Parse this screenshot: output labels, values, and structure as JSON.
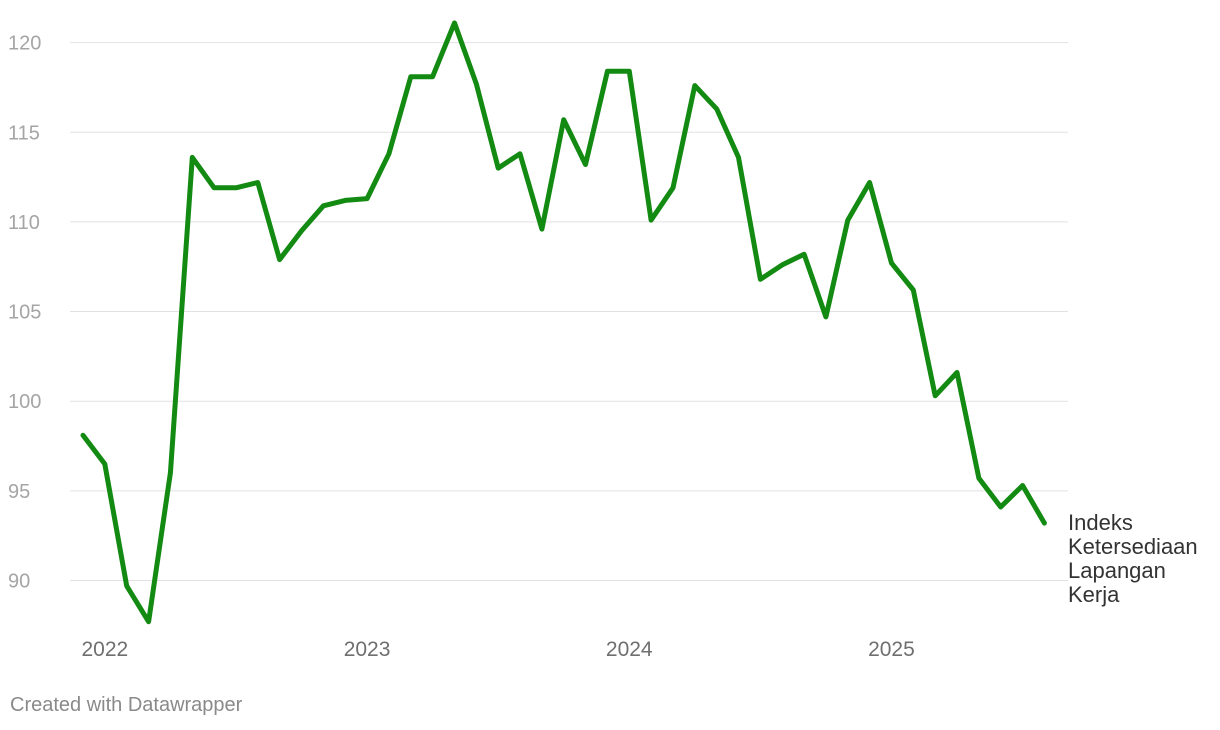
{
  "chart_data": {
    "type": "line",
    "ylim": [
      87.5,
      122.5
    ],
    "y_ticks": [
      90,
      95,
      100,
      105,
      110,
      115,
      120
    ],
    "x_ticks": [
      "2022",
      "2023",
      "2024",
      "2025"
    ],
    "grid": "horizontal",
    "series": [
      {
        "name": "Indeks Ketersediaan Lapangan Kerja",
        "name_lines": [
          "Indeks",
          "Ketersediaan",
          "Lapangan",
          "Kerja"
        ],
        "color": "#138a12",
        "x": [
          "2021-12",
          "2022-01",
          "2022-02",
          "2022-03",
          "2022-04",
          "2022-05",
          "2022-06",
          "2022-07",
          "2022-08",
          "2022-09",
          "2022-10",
          "2022-11",
          "2022-12",
          "2023-01",
          "2023-02",
          "2023-03",
          "2023-04",
          "2023-05",
          "2023-06",
          "2023-07",
          "2023-08",
          "2023-09",
          "2023-10",
          "2023-11",
          "2023-12",
          "2024-01",
          "2024-02",
          "2024-03",
          "2024-04",
          "2024-05",
          "2024-06",
          "2024-07",
          "2024-08",
          "2024-09",
          "2024-10",
          "2024-11",
          "2024-12",
          "2025-01",
          "2025-02",
          "2025-03",
          "2025-04",
          "2025-05",
          "2025-06",
          "2025-07",
          "2025-08"
        ],
        "values": [
          98.1,
          96.5,
          89.7,
          87.7,
          96.0,
          113.6,
          111.9,
          111.9,
          112.2,
          107.9,
          109.5,
          110.9,
          111.2,
          111.3,
          113.8,
          118.1,
          118.1,
          121.1,
          117.7,
          113.0,
          113.8,
          109.6,
          115.7,
          113.2,
          118.4,
          118.4,
          110.1,
          111.9,
          117.6,
          116.3,
          113.6,
          106.8,
          107.6,
          108.2,
          104.7,
          110.1,
          112.2,
          107.7,
          106.2,
          100.3,
          101.6,
          95.7,
          94.1,
          95.3,
          93.2
        ]
      }
    ]
  },
  "footer": {
    "credit": "Created with Datawrapper"
  }
}
